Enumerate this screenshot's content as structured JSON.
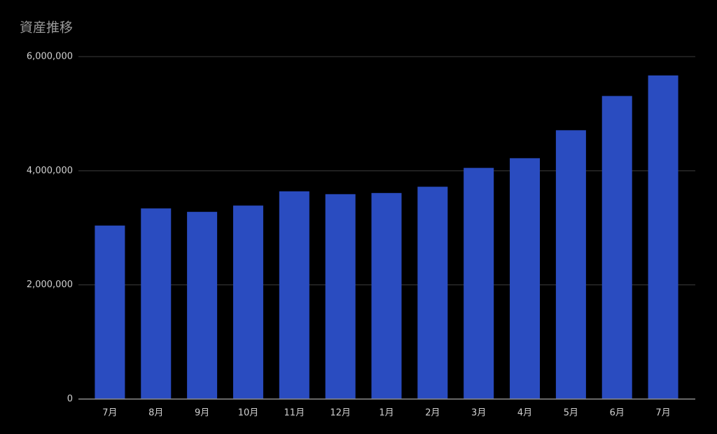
{
  "chart_data": {
    "type": "bar",
    "title": "資産推移",
    "categories": [
      "7月",
      "8月",
      "9月",
      "10月",
      "11月",
      "12月",
      "1月",
      "2月",
      "3月",
      "4月",
      "5月",
      "6月",
      "7月"
    ],
    "values": [
      3040000,
      3340000,
      3280000,
      3390000,
      3640000,
      3590000,
      3610000,
      3720000,
      4050000,
      4220000,
      4710000,
      5310000,
      5670000
    ],
    "color": "#2a4cc0",
    "ylim": [
      0,
      6000000
    ],
    "yticks": [
      0,
      {
        "value": 2000000,
        "label": "2,000,000"
      },
      {
        "value": 4000000,
        "label": "4,000,000"
      },
      {
        "value": 6000000,
        "label": "6,000,000"
      }
    ],
    "grid": true
  }
}
